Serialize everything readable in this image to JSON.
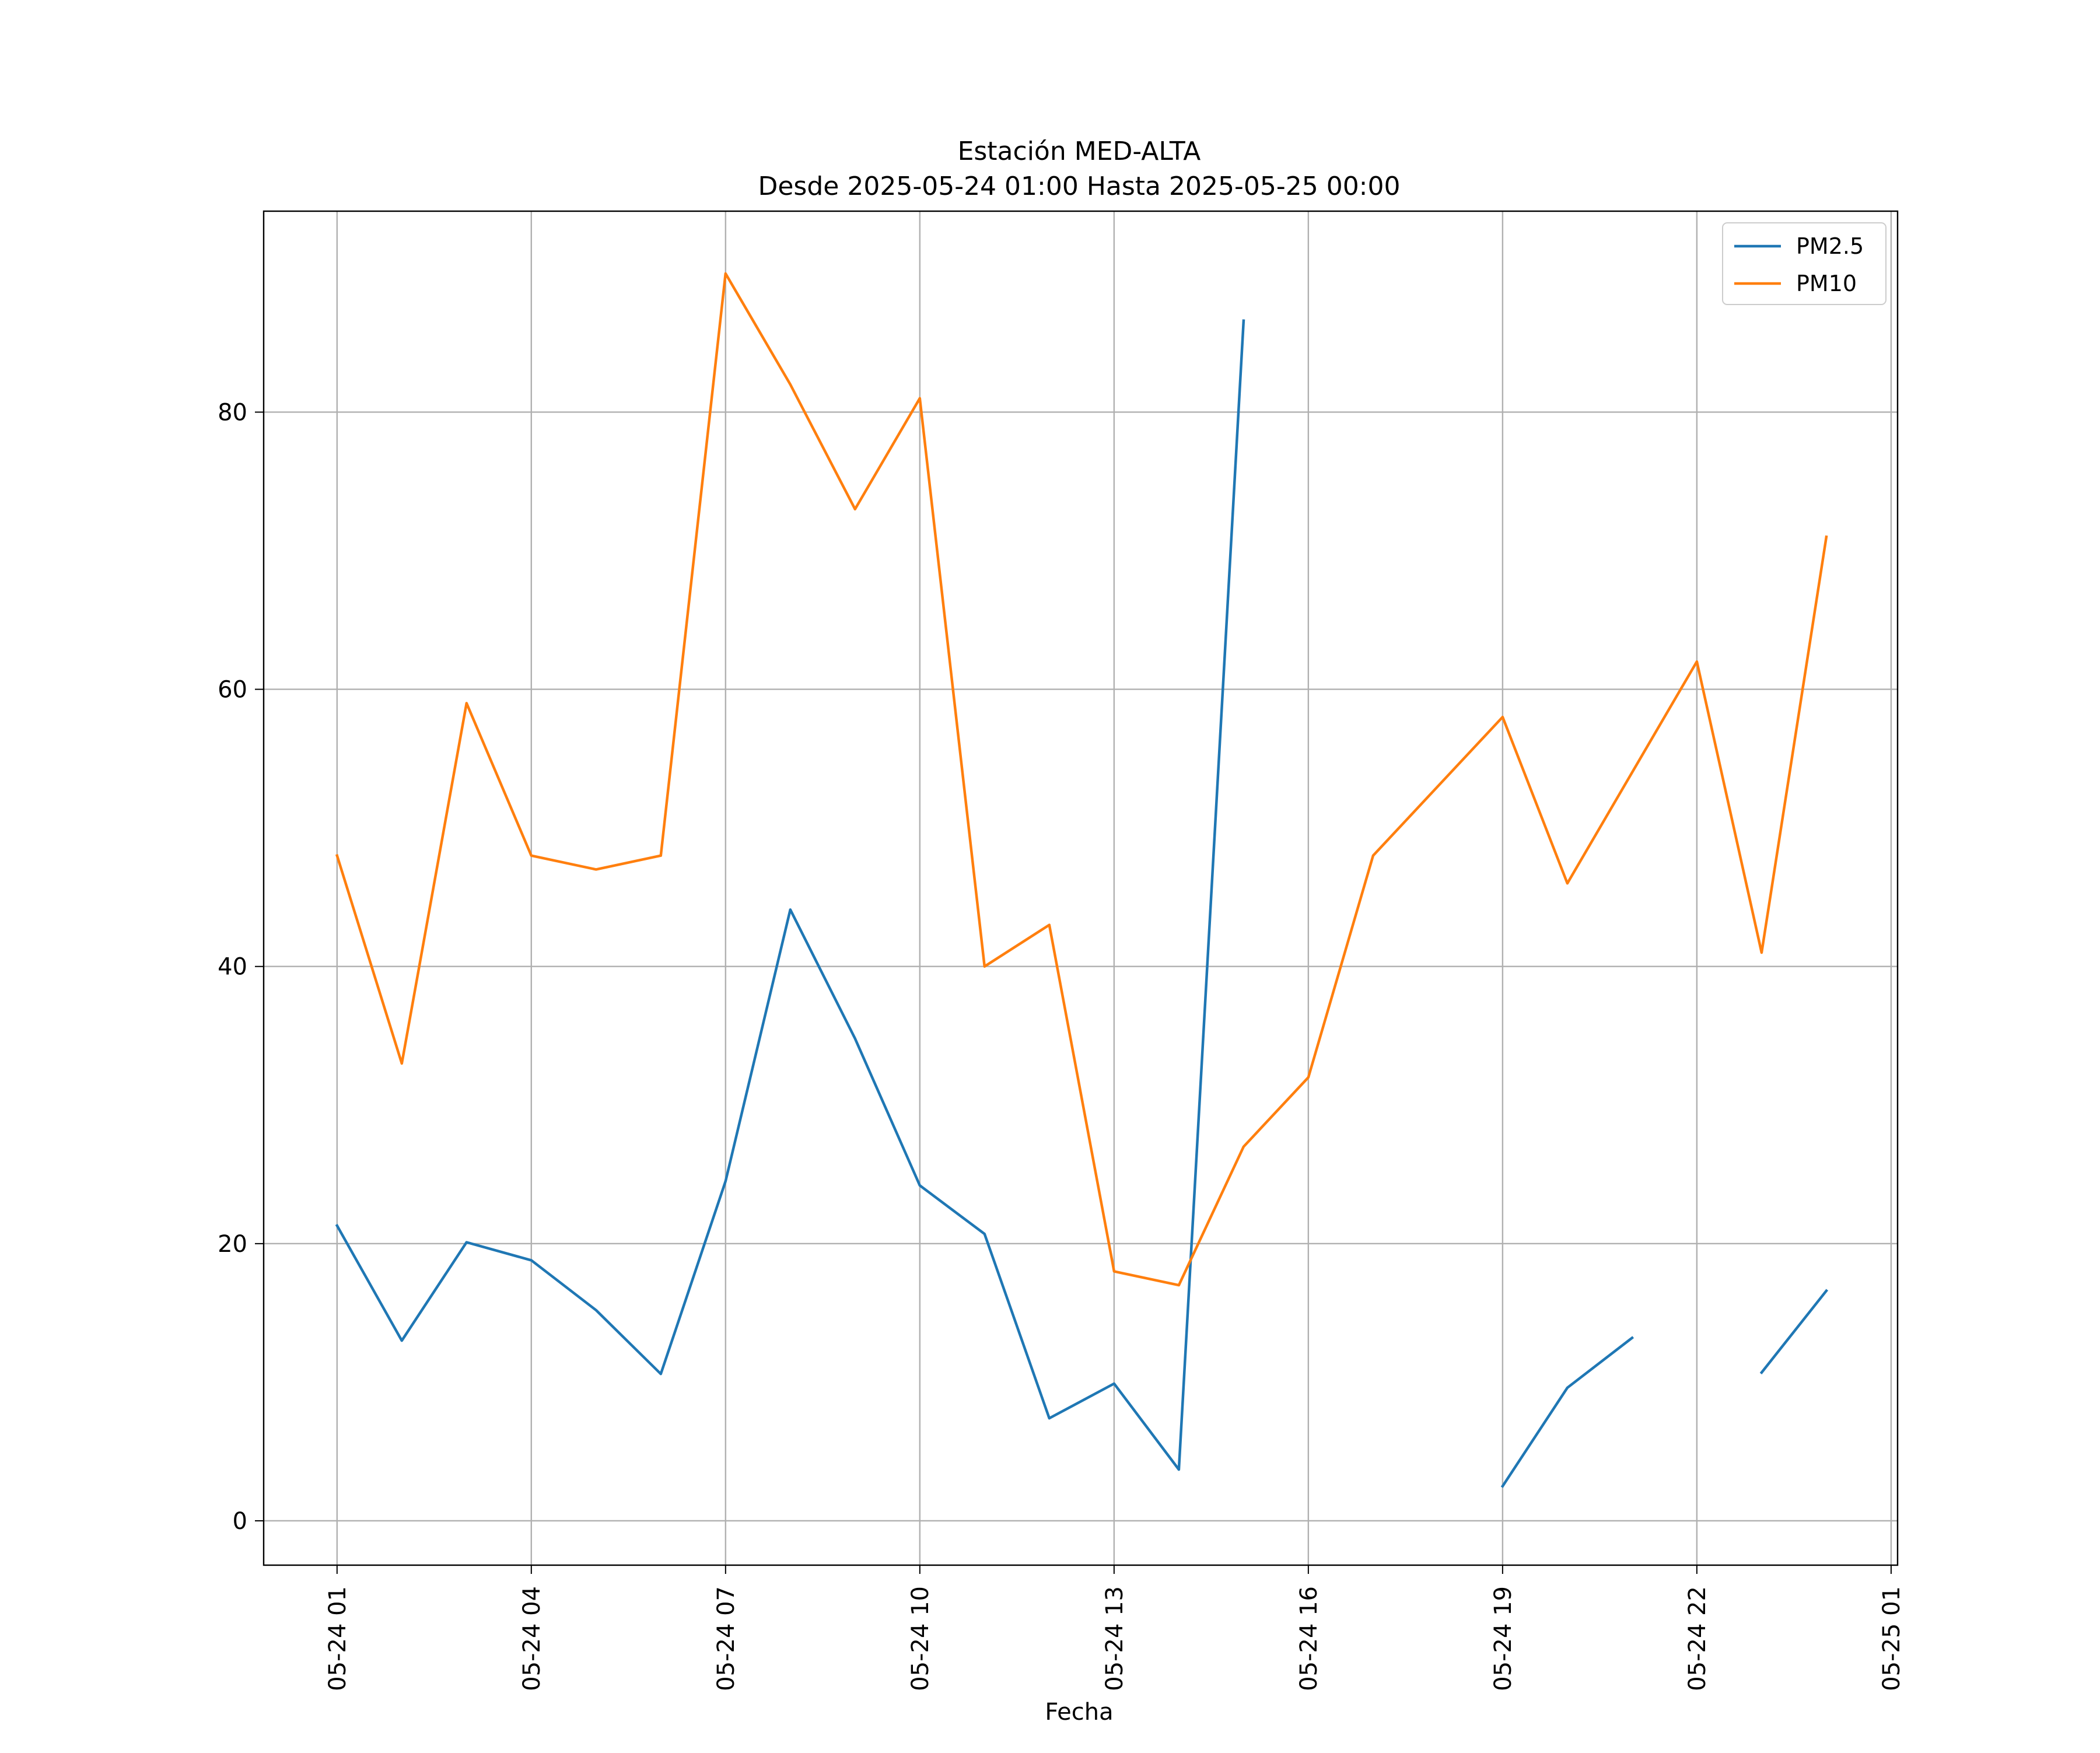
{
  "chart_data": {
    "type": "line",
    "title": "Estación MED-ALTA",
    "subtitle": "Desde 2025-05-24 01:00 Hasta 2025-05-25 00:00",
    "xlabel": "Fecha",
    "ylabel": "",
    "x": [
      "2025-05-24 01:00",
      "2025-05-24 02:00",
      "2025-05-24 03:00",
      "2025-05-24 04:00",
      "2025-05-24 05:00",
      "2025-05-24 06:00",
      "2025-05-24 07:00",
      "2025-05-24 08:00",
      "2025-05-24 09:00",
      "2025-05-24 10:00",
      "2025-05-24 11:00",
      "2025-05-24 12:00",
      "2025-05-24 13:00",
      "2025-05-24 14:00",
      "2025-05-24 15:00",
      "2025-05-24 16:00",
      "2025-05-24 17:00",
      "2025-05-24 18:00",
      "2025-05-24 19:00",
      "2025-05-24 20:00",
      "2025-05-24 21:00",
      "2025-05-24 22:00",
      "2025-05-24 23:00",
      "2025-05-25 00:00"
    ],
    "xlim": [
      "2025-05-23 23:52",
      "2025-05-25 01:06"
    ],
    "x_ticks": [
      "2025-05-24 01:00",
      "2025-05-24 04:00",
      "2025-05-24 07:00",
      "2025-05-24 10:00",
      "2025-05-24 13:00",
      "2025-05-24 16:00",
      "2025-05-24 19:00",
      "2025-05-24 22:00",
      "2025-05-25 01:00"
    ],
    "x_tick_labels": [
      "05-24 01",
      "05-24 04",
      "05-24 07",
      "05-24 10",
      "05-24 13",
      "05-24 16",
      "05-24 19",
      "05-24 22",
      "05-25 01"
    ],
    "ylim": [
      -3.2,
      94.5
    ],
    "y_ticks": [
      0,
      20,
      40,
      60,
      80
    ],
    "y_tick_labels": [
      "0",
      "20",
      "40",
      "60",
      "80"
    ],
    "grid": true,
    "legend_position": "top-right",
    "series": [
      {
        "name": "PM2.5",
        "color": "#1f77b4",
        "values": [
          21.3,
          13.0,
          20.1,
          18.8,
          15.2,
          10.6,
          24.5,
          44.1,
          34.8,
          24.2,
          20.7,
          7.4,
          9.9,
          3.7,
          86.6,
          null,
          null,
          null,
          2.5,
          9.6,
          13.2,
          null,
          10.7,
          16.6
        ]
      },
      {
        "name": "PM10",
        "color": "#ff7f0e",
        "values": [
          48,
          33,
          59,
          48,
          47,
          48,
          90,
          82,
          73,
          81,
          40,
          43,
          18,
          17,
          27,
          32,
          48,
          53,
          58,
          46,
          54,
          62,
          41,
          71
        ]
      }
    ]
  }
}
